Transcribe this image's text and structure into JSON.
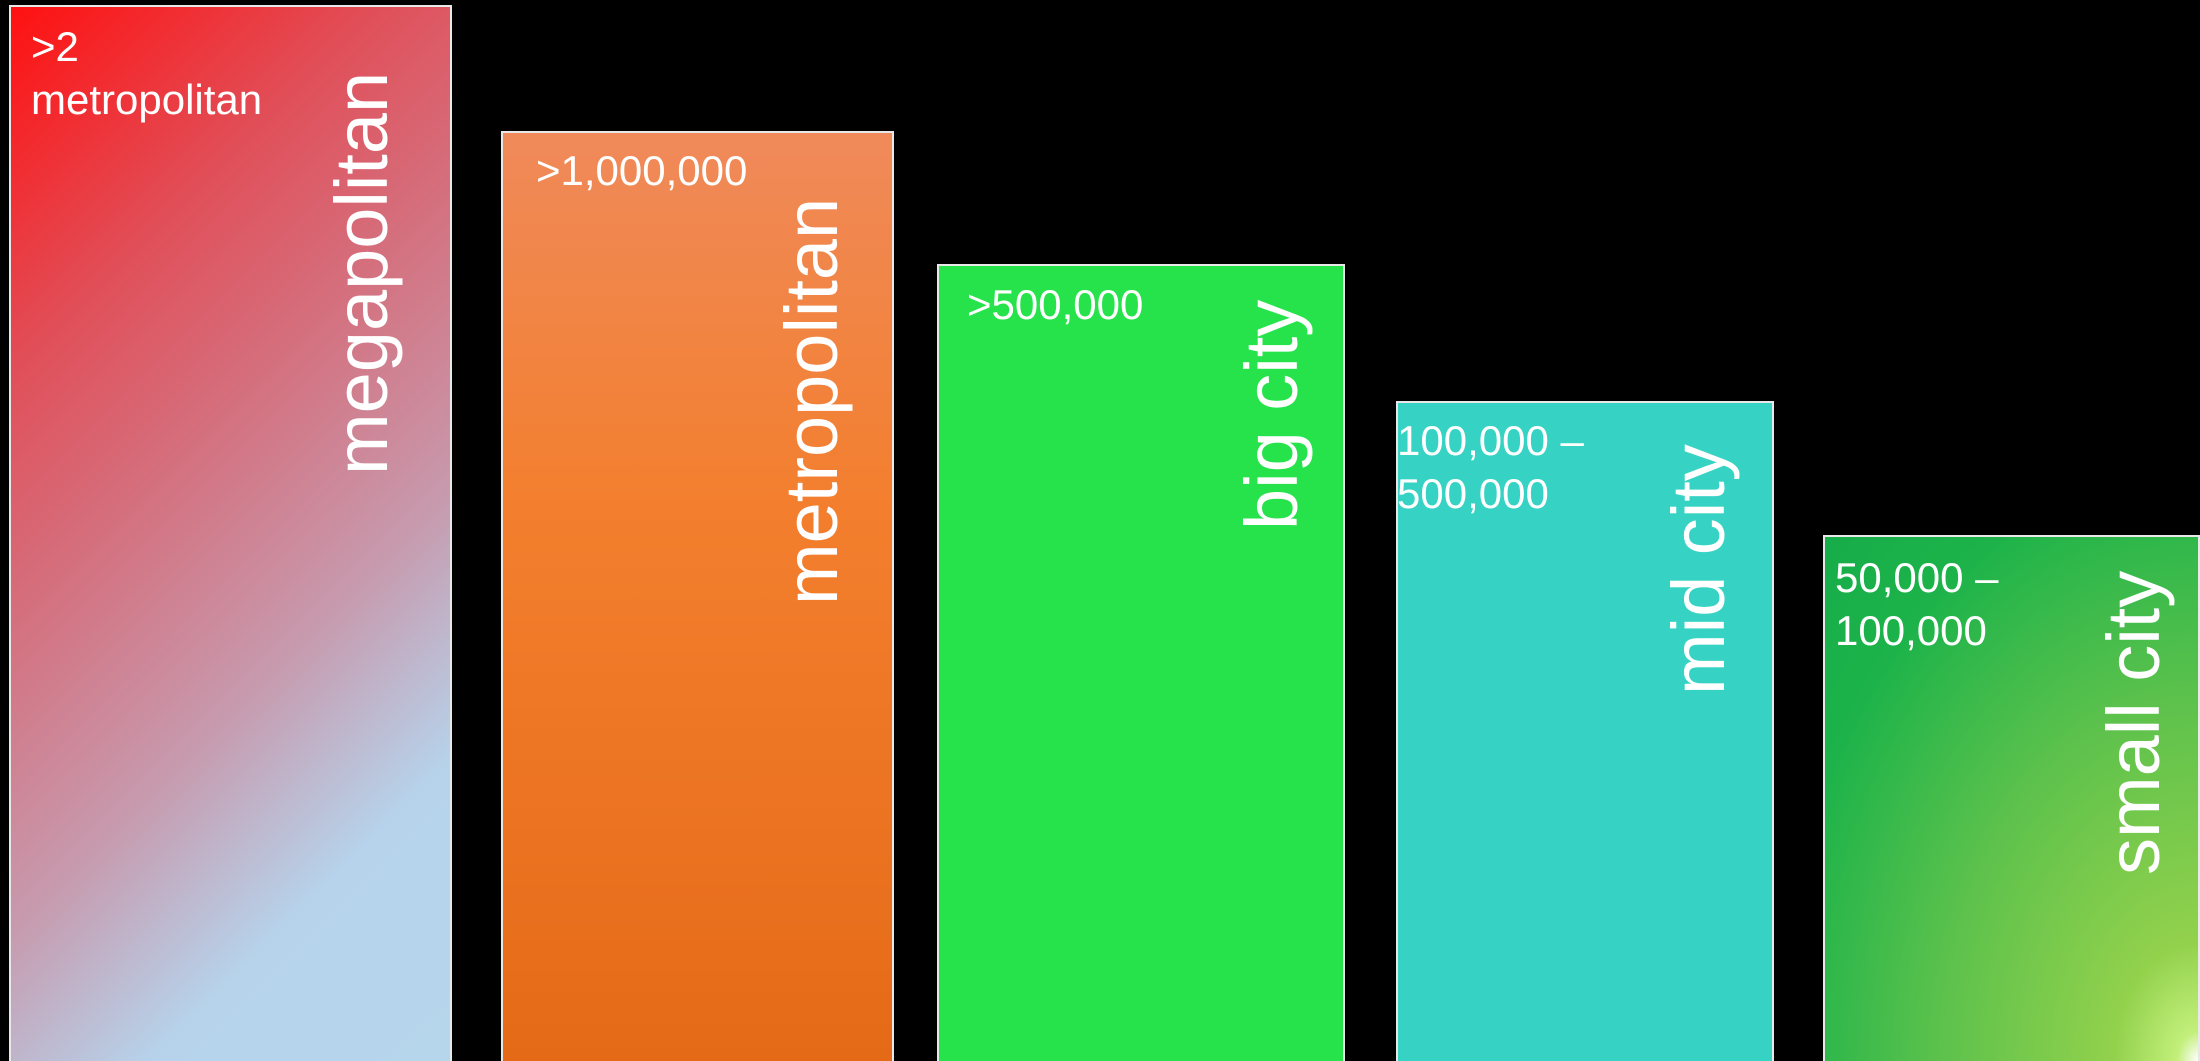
{
  "bars": [
    {
      "label": "megapolitan",
      "range": ">2\nmetropolitan"
    },
    {
      "label": "metropolitan",
      "range": ">1,000,000"
    },
    {
      "label": "big city",
      "range": ">500,000"
    },
    {
      "label": "mid city",
      "range": "100,000 –\n500,000"
    },
    {
      "label": "small city",
      "range": "50,000 –\n100,000"
    }
  ]
}
